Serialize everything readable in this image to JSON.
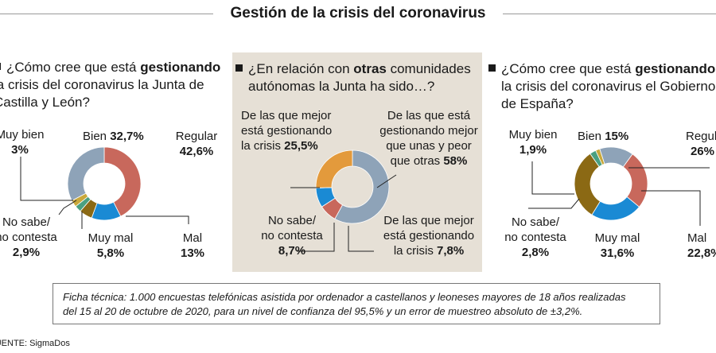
{
  "title": "Gestión de la crisis del coronavirus",
  "colors": {
    "regular": "#c8685c",
    "mal": "#1a8ad4",
    "muy_mal": "#8b6914",
    "no_sabe": "#4aa080",
    "muy_bien": "#c9a83a",
    "bien": "#8ea3b8",
    "mejor_unas_peor_otras": "#8ea3b8",
    "de_las_que_mejor": "#e39a3c",
    "no_sabe_2": "#1a8ad4",
    "de_las_que_peor": "#c8685c",
    "panel_bg": "#e6e0d6"
  },
  "q1": {
    "pre": "¿Cómo cree que está ",
    "bold": "gestionando",
    "line2": "la crisis del coronavirus la Junta de",
    "line3": "Castilla y León?"
  },
  "q2": {
    "pre": "¿En relación con ",
    "bold": "otras",
    "post": " comunidades",
    "line2": "autónomas la Junta ha sido…?"
  },
  "q3": {
    "pre": "¿Cómo cree que está ",
    "bold": "gestionando",
    "line2": "la crisis del coronavirus el Gobierno",
    "line3": "de España?"
  },
  "chart_data": [
    {
      "type": "pie",
      "donut": true,
      "title": "¿Cómo cree que está gestionando la crisis del coronavirus la Junta de Castilla y León?",
      "labels": [
        "Regular",
        "Mal",
        "Muy mal",
        "No sabe/ no contesta",
        "Muy bien",
        "Bien"
      ],
      "values": [
        42.6,
        13,
        5.8,
        2.9,
        3,
        32.7
      ],
      "value_labels": [
        "42,6%",
        "13%",
        "5,8%",
        "2,9%",
        "3%",
        "32,7%"
      ]
    },
    {
      "type": "pie",
      "donut": true,
      "title": "¿En relación con otras comunidades autónomas la Junta ha sido…?",
      "labels": [
        "De las que está gestionando mejor que unas y peor que otras",
        "De las que mejor está gestionando la crisis",
        "No sabe/ no contesta",
        "De las que mejor está gestionando la crisis"
      ],
      "values": [
        58,
        7.8,
        8.7,
        25.5
      ],
      "value_labels": [
        "58%",
        "7,8%",
        "8,7%",
        "25,5%"
      ]
    },
    {
      "type": "pie",
      "donut": true,
      "title": "¿Cómo cree que está gestionando la crisis del coronavirus el Gobierno de España?",
      "labels": [
        "Regular",
        "Mal",
        "Muy mal",
        "No sabe/ no contesta",
        "Muy bien",
        "Bien"
      ],
      "values": [
        26,
        22.8,
        31.6,
        2.8,
        1.9,
        15
      ],
      "value_labels": [
        "26%",
        "22,8%",
        "31,6%",
        "2,8%",
        "1,9%",
        "15%"
      ]
    }
  ],
  "labels1": {
    "muy_bien": "Muy bien",
    "muy_bien_v": "3%",
    "bien": "Bien ",
    "bien_v": "32,7%",
    "regular": "Regular",
    "regular_v": "42,6%",
    "no_sabe_1": "No sabe/",
    "no_sabe_2": "no contesta",
    "no_sabe_v": "2,9%",
    "muy_mal": "Muy mal",
    "muy_mal_v": "5,8%",
    "mal": "Mal",
    "mal_v": "13%"
  },
  "labels2": {
    "mejor_1": "De las que mejor",
    "mejor_2": "está gestionando",
    "mejor_3": "la crisis ",
    "mejor_v": "25,5%",
    "medio_1": "De las que está",
    "medio_2": "gestionando mejor",
    "medio_3": "que unas y peor",
    "medio_4": "que otras ",
    "medio_v": "58%",
    "no_sabe_1": "No sabe/",
    "no_sabe_2": "no contesta",
    "no_sabe_v": "8,7%",
    "peor_1": "De las que mejor",
    "peor_2": "está gestionando",
    "peor_3": "la crisis ",
    "peor_v": "7,8%"
  },
  "labels3": {
    "muy_bien": "Muy bien",
    "muy_bien_v": "1,9%",
    "bien": "Bien ",
    "bien_v": "15%",
    "regular": "Regular",
    "regular_v": "26%",
    "no_sabe_1": "No sabe/",
    "no_sabe_2": "no contesta",
    "no_sabe_v": "2,8%",
    "muy_mal": "Muy mal",
    "muy_mal_v": "31,6%",
    "mal": "Mal",
    "mal_v": "22,8%"
  },
  "ficha": {
    "line1": "Ficha técnica: 1.000 encuestas telefónicas asistida por ordenador a castellanos y leoneses mayores de 18 años realizadas",
    "line2": "del 15 al 20 de octubre de 2020, para un nivel de confianza del 95,5% y un error de muestreo absoluto de ±3,2%."
  },
  "fuente": "FUENTE: SigmaDos"
}
